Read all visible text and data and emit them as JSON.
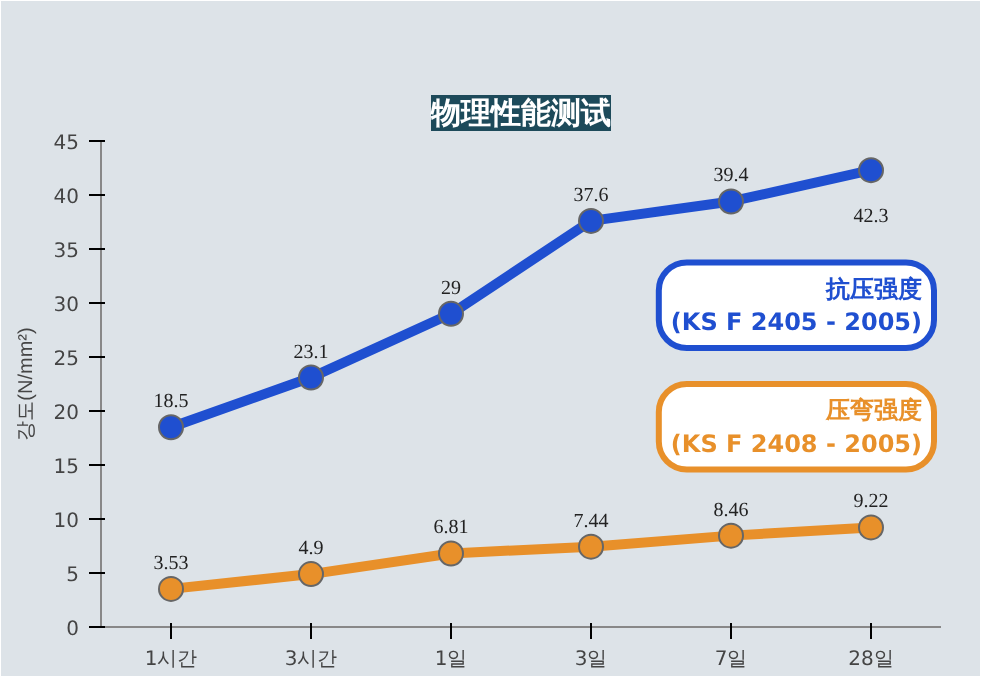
{
  "chart_data": {
    "type": "line",
    "title": "物理性能测试",
    "ylabel": "강도(N/mm²)",
    "categories": [
      "1시간",
      "3시간",
      "1일",
      "3일",
      "7일",
      "28일"
    ],
    "series": [
      {
        "name": "抗压强度\n(KS F 2405 - 2005)",
        "color": "#1f4fd0",
        "values": [
          18.5,
          23.1,
          29,
          37.6,
          39.4,
          42.3
        ]
      },
      {
        "name": "压弯强度\n(KS F 2408 - 2005)",
        "color": "#e8902a",
        "values": [
          3.53,
          4.9,
          6.81,
          7.44,
          8.46,
          9.22
        ]
      }
    ],
    "ylim": [
      0,
      45
    ],
    "yticks": [
      0,
      5,
      10,
      15,
      20,
      25,
      30,
      35,
      40,
      45
    ],
    "data_labels": true,
    "marker": "circle",
    "line_style": "solid",
    "grid": false
  }
}
